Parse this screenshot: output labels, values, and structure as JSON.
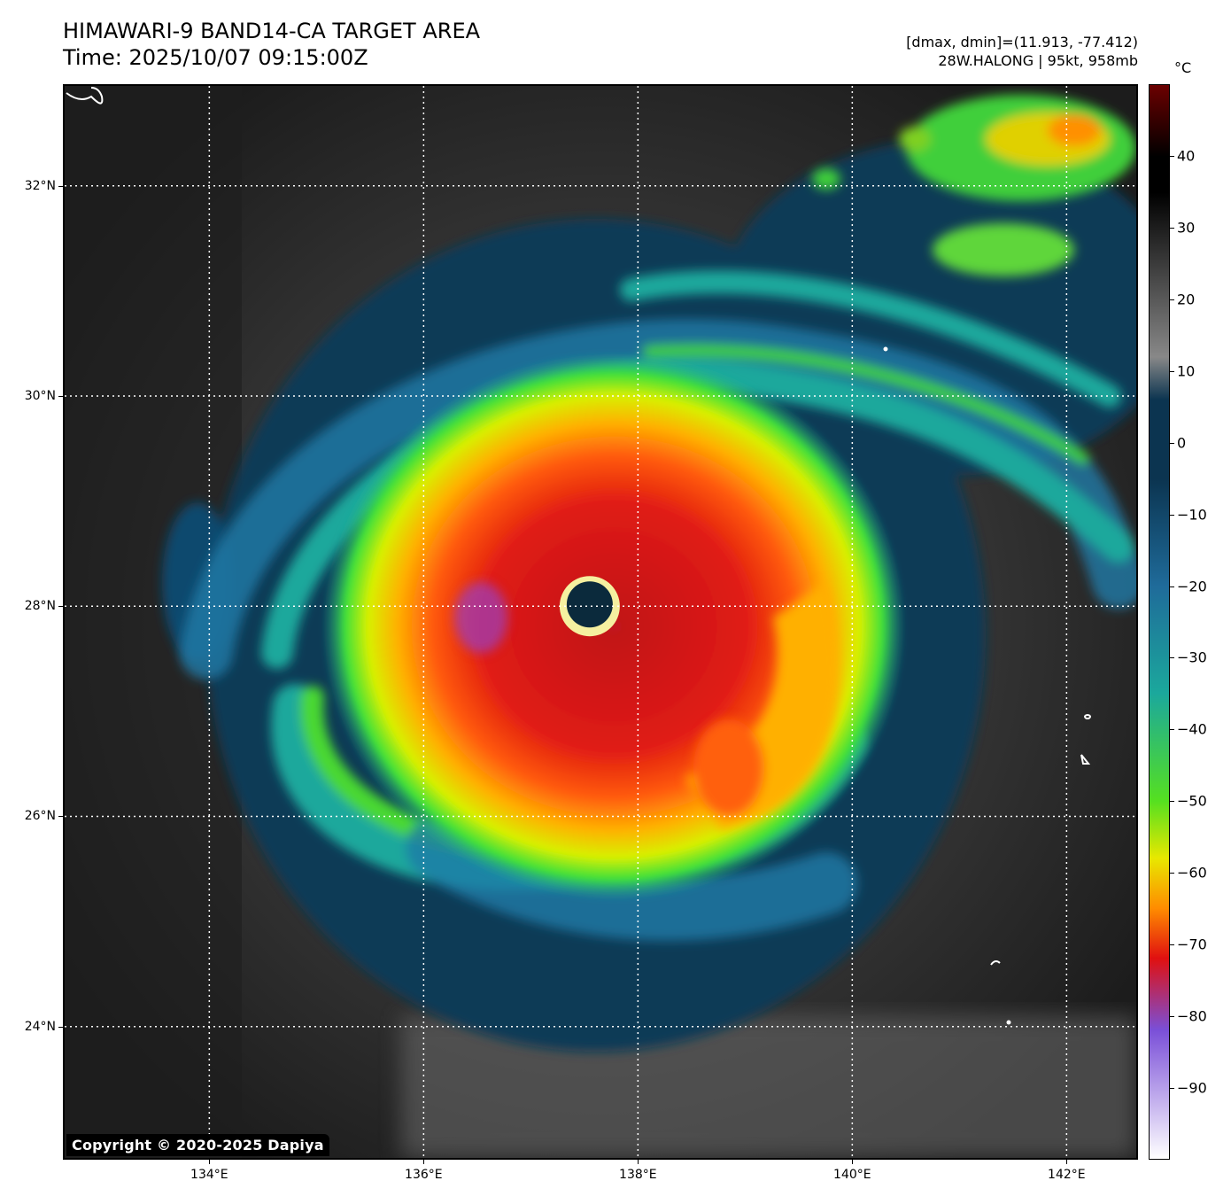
{
  "header": {
    "title": "HIMAWARI-9 BAND14-CA TARGET AREA",
    "time": "Time: 2025/10/07 09:15:00Z",
    "dminmax": "[dmax, dmin]=(11.913, -77.412)",
    "storm": "28W.HALONG | 95kt, 958mb"
  },
  "map": {
    "lat_labels": [
      "32°N",
      "30°N",
      "28°N",
      "26°N",
      "24°N"
    ],
    "lon_labels": [
      "134°E",
      "136°E",
      "138°E",
      "140°E",
      "142°E"
    ],
    "lat_values": [
      32,
      30,
      28,
      26,
      24
    ],
    "lon_values": [
      134,
      136,
      138,
      140,
      142
    ],
    "lat_range": [
      22.75,
      32.95
    ],
    "lon_range": [
      132.65,
      142.65
    ],
    "storm_center": {
      "lon": 137.55,
      "lat": 28.0
    },
    "copyright": "Copyright © 2020-2025 Dapiya"
  },
  "colorbar": {
    "unit": "°C",
    "labels": [
      "40",
      "30",
      "20",
      "10",
      "0",
      "−10",
      "−20",
      "−30",
      "−40",
      "−50",
      "−60",
      "−70",
      "−80",
      "−90"
    ],
    "values": [
      40,
      30,
      20,
      10,
      0,
      -10,
      -20,
      -30,
      -40,
      -50,
      -60,
      -70,
      -80,
      -90
    ],
    "range": [
      -100,
      50
    ],
    "colors": {
      "warm_top": "#6b0000",
      "black": "#000000",
      "gray": "#888888",
      "teal_dark": "#0b3450",
      "blue": "#1f6b9a",
      "teal": "#1ba89c",
      "green": "#55e020",
      "yellow": "#e8e800",
      "orange": "#ff8c00",
      "red": "#e01010",
      "purple": "#7a4fd8",
      "white": "#ffffff"
    }
  }
}
